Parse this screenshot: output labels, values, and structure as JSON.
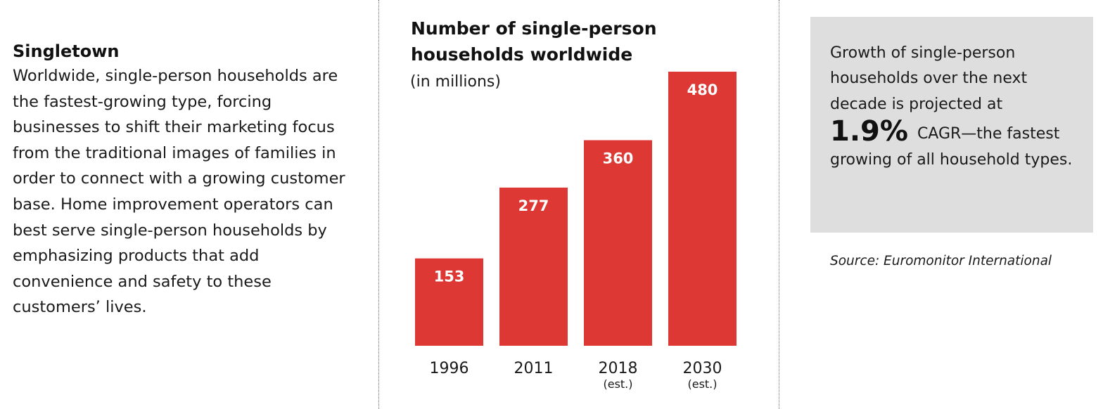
{
  "left_panel": {
    "heading": "Singletown",
    "body": "Worldwide, single-person households are the fastest-growing type, forcing businesses to shift their marketing focus from the traditional images of families in order to connect with a growing customer base. Home improvement operators can best serve single-person households by emphasizing products that add convenience and safety to these customers’ lives."
  },
  "chart_data": {
    "type": "bar",
    "title": "Number of single-person households worldwide",
    "subtitle": "(in millions)",
    "categories": [
      "1996",
      "2011",
      "2018",
      "2030"
    ],
    "category_notes": [
      "",
      "",
      "(est.)",
      "(est.)"
    ],
    "values": [
      153,
      277,
      360,
      480
    ],
    "data_labels": [
      "153",
      "277",
      "360",
      "480"
    ],
    "ylim": [
      0,
      480
    ],
    "xlabel": "",
    "ylabel": "",
    "grid": false,
    "bar_color": "#dd3833"
  },
  "stat_box": {
    "intro": "Growth of single-person households over the next decade is projected at",
    "big_value": "1.9%",
    "after_value": "CAGR—the fastest growing of all household types."
  },
  "source": {
    "text": "Source: Euromonitor International"
  },
  "colors": {
    "accent_red": "#dd3833",
    "box_gray": "#dedede",
    "text": "#1a1a1a"
  }
}
